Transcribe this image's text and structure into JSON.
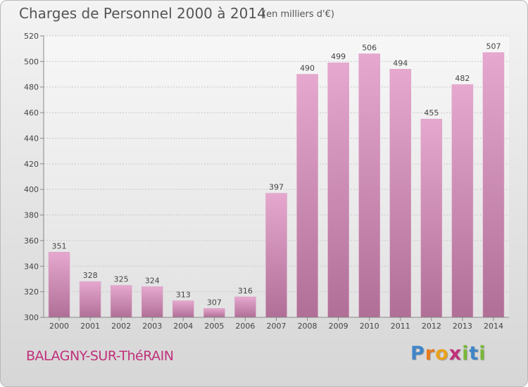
{
  "title": "Charges de Personnel 2000 à 2014",
  "subtitle": "(en milliers d'€)",
  "commune": "BALAGNY-SUR-ThéRAIN",
  "brand": {
    "letters": [
      "P",
      "r",
      "o",
      "x",
      "i",
      "t",
      "i"
    ],
    "colors": [
      "#3f86c8",
      "#e87a1d",
      "#e8a21d",
      "#c0307a",
      "#7ab83a",
      "#3f86c8",
      "#7ab83a"
    ]
  },
  "chart_data": {
    "type": "bar",
    "categories": [
      "2000",
      "2001",
      "2002",
      "2003",
      "2004",
      "2005",
      "2006",
      "2007",
      "2008",
      "2009",
      "2010",
      "2011",
      "2012",
      "2013",
      "2014"
    ],
    "values": [
      351,
      328,
      325,
      324,
      313,
      307,
      316,
      397,
      490,
      499,
      506,
      494,
      455,
      482,
      507
    ],
    "ylim": [
      300,
      520
    ],
    "yticks": [
      300,
      320,
      340,
      360,
      380,
      400,
      420,
      440,
      460,
      480,
      500,
      520
    ],
    "grid": true,
    "bar_color_top": "#e6a8cf",
    "bar_color_bottom": "#b06f96"
  }
}
